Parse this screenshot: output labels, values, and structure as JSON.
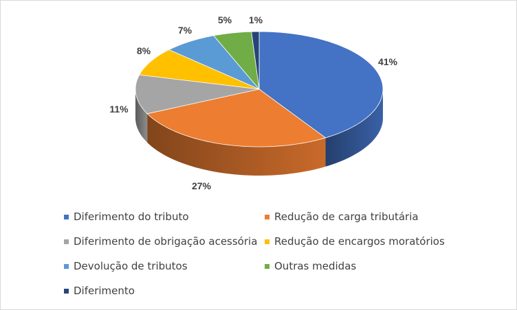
{
  "chart_data": {
    "type": "pie",
    "title": "",
    "style": "3d",
    "legend_position": "bottom",
    "categories": [
      "Diferimento do tributo",
      "Redução de carga tributária",
      "Diferimento de obrigação acessória",
      "Redução de encargos moratórios",
      "Devolução de tributos",
      "Outras medidas",
      "Diferimento"
    ],
    "values": [
      41,
      27,
      11,
      8,
      7,
      5,
      1
    ],
    "labels": [
      "41%",
      "27%",
      "11%",
      "8%",
      "7%",
      "5%",
      "1%"
    ],
    "colors": [
      "#4472C4",
      "#ED7D31",
      "#A5A5A5",
      "#FFC000",
      "#5B9BD5",
      "#70AD47",
      "#264478"
    ]
  }
}
